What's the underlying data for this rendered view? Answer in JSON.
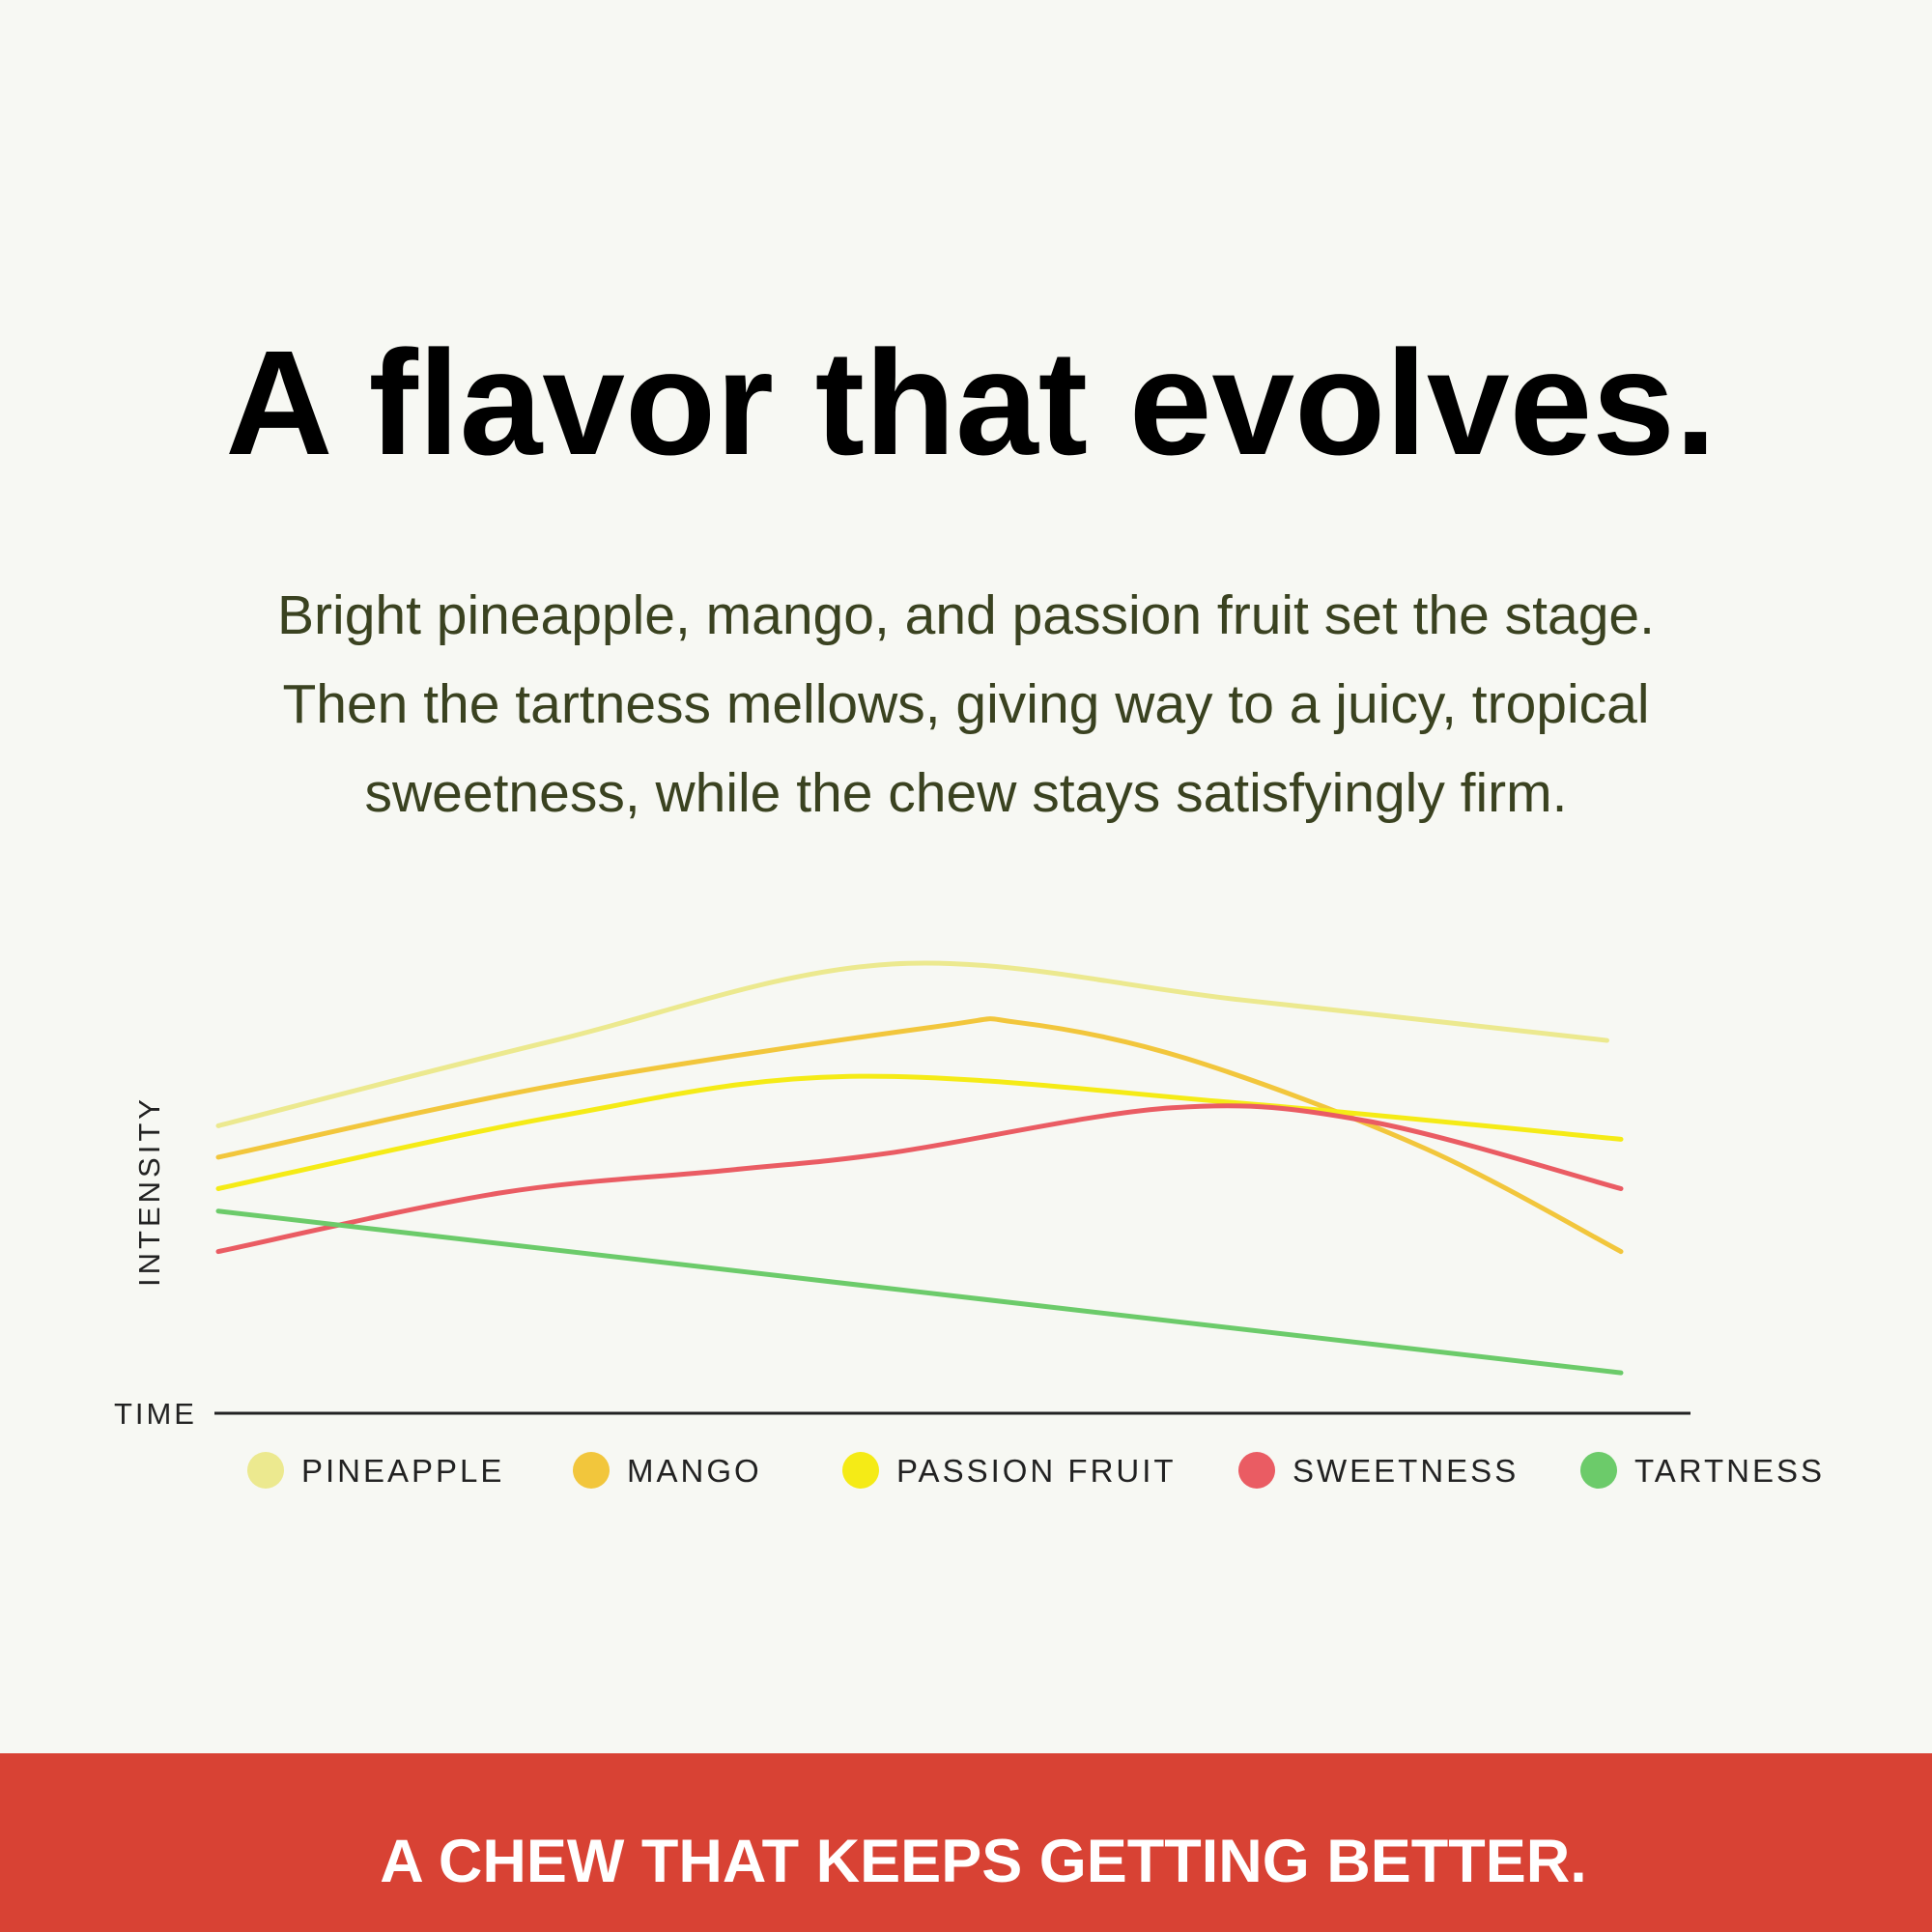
{
  "chart_data": {
    "type": "line",
    "title": "A flavor that evolves.",
    "subtitle": [
      "Bright pineapple, mango, and passion fruit set the stage.",
      "Then the tartness mellows, giving way to a juicy, tropical",
      "sweetness, while the chew stays satisfyingly firm."
    ],
    "x_label": "TIME",
    "y_label": "INTENSITY",
    "xlim": [
      0,
      100
    ],
    "ylim": [
      0,
      100
    ],
    "smooth": true,
    "series": [
      {
        "name": "PINEAPPLE",
        "color": "#ece98f",
        "x": [
          0,
          24,
          48,
          73,
          99
        ],
        "values": [
          64,
          83,
          100,
          92,
          83
        ]
      },
      {
        "name": "MANGO",
        "color": "#f2c63c",
        "x": [
          0,
          24,
          51,
          57,
          69,
          86,
          100
        ],
        "values": [
          57,
          73,
          86,
          87,
          79,
          59,
          36
        ]
      },
      {
        "name": "PASSION FRUIT",
        "color": "#f5eb16",
        "x": [
          0,
          24,
          45,
          73,
          100
        ],
        "values": [
          50,
          66,
          75,
          69,
          61
        ]
      },
      {
        "name": "SWEETNESS",
        "color": "#ea5c63",
        "x": [
          0,
          20,
          36,
          48,
          68,
          82,
          100
        ],
        "values": [
          36,
          49,
          54,
          58,
          68,
          65,
          50
        ]
      },
      {
        "name": "TARTNESS",
        "color": "#6ccb6a",
        "x": [
          0,
          100
        ],
        "values": [
          45,
          9
        ]
      }
    ]
  },
  "footer": "A CHEW THAT KEEPS GETTING BETTER."
}
